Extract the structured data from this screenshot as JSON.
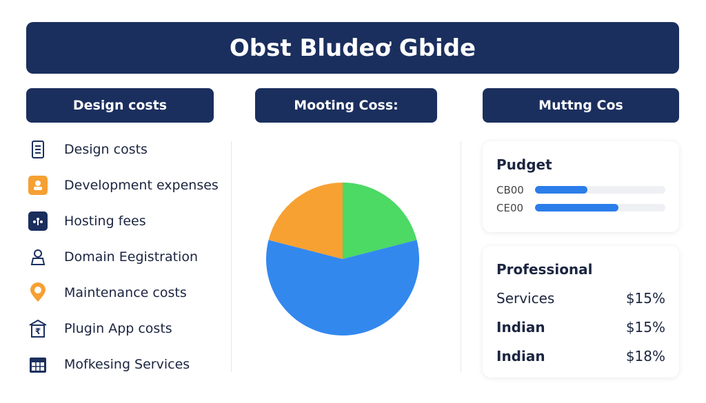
{
  "header": {
    "title": "Obst Bludeơ Gbide"
  },
  "columns": [
    {
      "header": "Design costs",
      "items": [
        "Design costs",
        "Development expenses",
        "Hosting fees",
        "Domain Eegistration",
        "Maintenance costs",
        "Plugin App costs",
        "Mofkesing Services"
      ]
    },
    {
      "header": "Mooting Coss:",
      "pie": {
        "values": [
          21,
          58,
          21
        ],
        "colors": [
          "#4cd964",
          "#3388ee",
          "#f7a133"
        ]
      }
    },
    {
      "header": "Muttng Cos",
      "budget": {
        "title": "Pudget",
        "bars": [
          {
            "label": "CB00",
            "fraction": 0.4
          },
          {
            "label": "CE00",
            "fraction": 0.64
          }
        ]
      },
      "professional": {
        "title": "Professional",
        "rows": [
          {
            "label": "Services",
            "value": "$15%"
          },
          {
            "label": "Indian",
            "value": "$15%"
          },
          {
            "label": "Indian",
            "value": "$18%"
          }
        ]
      }
    }
  ]
}
